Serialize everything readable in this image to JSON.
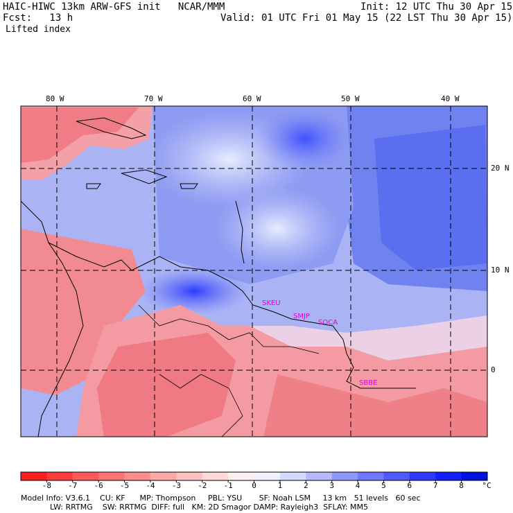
{
  "header": {
    "model_title": "HAIC-HIWC 13km ARW-GFS init   NCAR/MMM",
    "init": "Init: 12 UTC Thu 30 Apr 15",
    "fcst": "Fcst:   13 h",
    "valid": "Valid: 01 UTC Fri 01 May 15 (22 LST Thu 30 Apr 15)",
    "field": "Lifted index"
  },
  "map": {
    "lon_labels": [
      "80 W",
      "70 W",
      "60 W",
      "50 W",
      "40 W"
    ],
    "lat_labels": [
      "20 N",
      "10 N",
      "0"
    ],
    "stations": [
      "SKEU",
      "SMJP",
      "SOCA",
      "SBBE"
    ]
  },
  "colorbar": {
    "labels": [
      "-8",
      "-7",
      "-6",
      "-5",
      "-4",
      "-3",
      "-2",
      "-1",
      "0",
      "1",
      "2",
      "3",
      "4",
      "5",
      "6",
      "7",
      "8"
    ],
    "unit": "°C",
    "colors": [
      "#ff1e1e",
      "#ff3c3c",
      "#ff5a5a",
      "#ff7575",
      "#ff8f8f",
      "#ffa8a8",
      "#ffc0c0",
      "#ffd8d8",
      "#fff0f0",
      "#f0f0ff",
      "#d5d8ff",
      "#b5baff",
      "#9098ff",
      "#7078ff",
      "#5058ff",
      "#3038ff",
      "#1020ff",
      "#0010e0"
    ]
  },
  "footer": {
    "line1": "Model Info: V3.6.1    CU: KF      MP: Thompson     PBL: YSU       SF: Noah LSM     13 km   51 levels   60 sec",
    "line2": "            LW: RRTMG    SW: RRTMG  DIFF: full   KM: 2D Smagor DAMP: Rayleigh3  SFLAY: MM5"
  }
}
